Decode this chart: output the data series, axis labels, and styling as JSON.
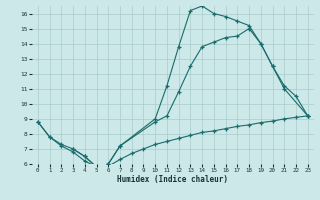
{
  "xlabel": "Humidex (Indice chaleur)",
  "bg_color": "#cce8e8",
  "grid_color": "#aacccc",
  "line_color": "#1a6b6b",
  "xlim": [
    -0.5,
    23.5
  ],
  "ylim": [
    6,
    16.5
  ],
  "xticks": [
    0,
    1,
    2,
    3,
    4,
    5,
    6,
    7,
    8,
    9,
    10,
    11,
    12,
    13,
    14,
    15,
    16,
    17,
    18,
    19,
    20,
    21,
    22,
    23
  ],
  "yticks": [
    6,
    7,
    8,
    9,
    10,
    11,
    12,
    13,
    14,
    15,
    16
  ],
  "line1_x": [
    0,
    1,
    2,
    3,
    4,
    5,
    6,
    7,
    8,
    9,
    10,
    11,
    12,
    13,
    14,
    15,
    16,
    17,
    18,
    19,
    20,
    21,
    22,
    23
  ],
  "line1_y": [
    8.8,
    7.8,
    7.3,
    7.0,
    6.5,
    5.8,
    5.85,
    6.3,
    6.7,
    7.0,
    7.3,
    7.5,
    7.7,
    7.9,
    8.1,
    8.2,
    8.35,
    8.5,
    8.6,
    8.75,
    8.85,
    9.0,
    9.1,
    9.2
  ],
  "line2_x": [
    0,
    1,
    2,
    3,
    4,
    5,
    6,
    7,
    10,
    11,
    12,
    13,
    14,
    15,
    16,
    17,
    18,
    19,
    20,
    21,
    22,
    23
  ],
  "line2_y": [
    8.8,
    7.8,
    7.2,
    6.8,
    6.2,
    5.8,
    6.0,
    7.2,
    8.8,
    9.2,
    10.8,
    12.5,
    13.8,
    14.1,
    14.4,
    14.5,
    15.0,
    14.0,
    12.5,
    11.2,
    10.5,
    9.2
  ],
  "line3_x": [
    3,
    4,
    5,
    6,
    7,
    10,
    11,
    12,
    13,
    14,
    15,
    16,
    17,
    18,
    19,
    20,
    21,
    23
  ],
  "line3_y": [
    7.0,
    6.5,
    5.8,
    6.0,
    7.2,
    9.0,
    11.2,
    13.8,
    16.2,
    16.5,
    16.0,
    15.8,
    15.5,
    15.2,
    14.0,
    12.5,
    11.0,
    9.2
  ]
}
